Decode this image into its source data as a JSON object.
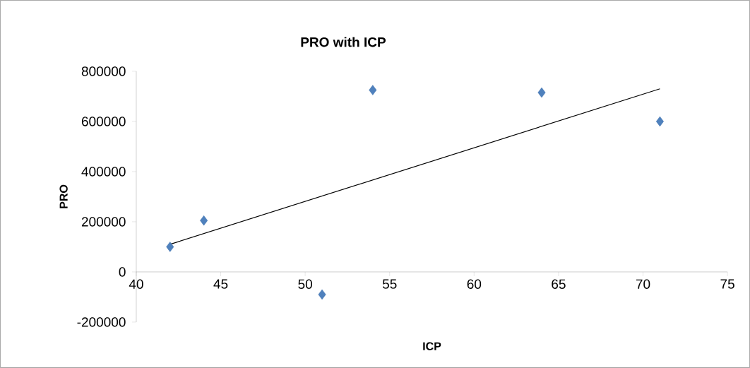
{
  "chart_data": {
    "type": "scatter",
    "title": "PRO with ICP",
    "xlabel": "ICP",
    "ylabel": "PRO",
    "series": [
      {
        "color": "#4f81bd",
        "x": [
          42,
          44,
          51,
          54,
          64,
          71
        ],
        "values": [
          100000,
          205000,
          -90000,
          725000,
          715000,
          600000
        ],
        "marker": "diamond"
      },
      {
        "type": "line",
        "color": "#000000",
        "x": [
          42,
          71
        ],
        "values": [
          110000,
          730000
        ],
        "marker": "none",
        "line_style": "solid"
      }
    ],
    "xlim": [
      40,
      75
    ],
    "xticks": [
      40,
      45,
      50,
      55,
      60,
      65,
      70,
      75
    ],
    "ylim": [
      -200000,
      800000
    ],
    "yticks": [
      -200000,
      0,
      200000,
      400000,
      600000,
      800000
    ],
    "grid": false
  }
}
